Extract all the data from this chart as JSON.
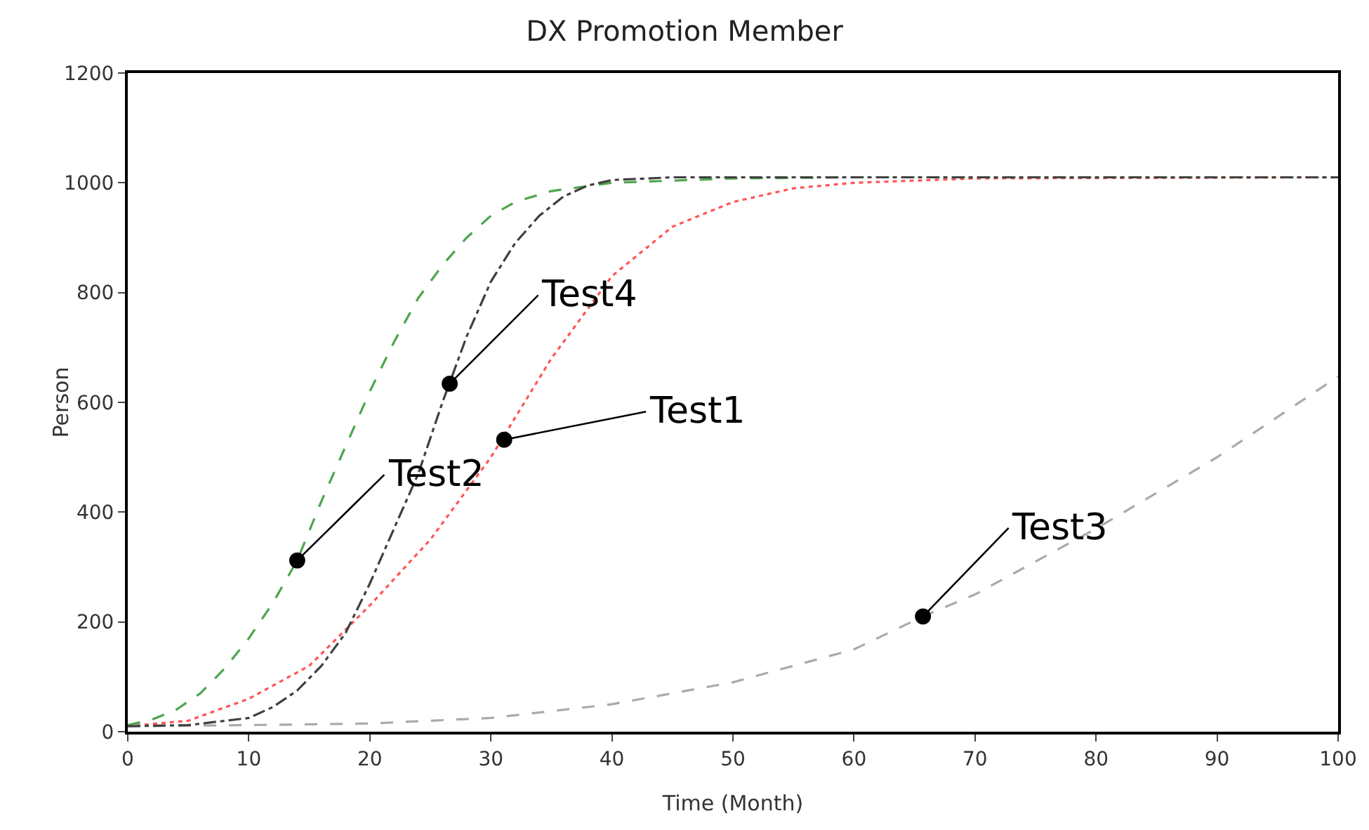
{
  "chart_data": {
    "type": "line",
    "title": "DX Promotion Member",
    "xlabel": "Time (Month)",
    "ylabel": "Person",
    "xlim": [
      0,
      100
    ],
    "xticks": [
      0,
      10,
      20,
      30,
      40,
      50,
      60,
      70,
      80,
      90,
      100
    ],
    "ylim": [
      0,
      1200
    ],
    "yticks": [
      0,
      200,
      400,
      600,
      800,
      1000,
      1200
    ],
    "grid": false,
    "marker": "none",
    "series": [
      {
        "color": "#ff5555",
        "line_style": "dotted",
        "x": [
          0,
          5,
          10,
          15,
          20,
          25,
          30,
          35,
          40,
          45,
          50,
          55,
          60,
          70,
          100
        ],
        "values": [
          10,
          20,
          60,
          120,
          230,
          350,
          500,
          680,
          830,
          920,
          965,
          990,
          1000,
          1008,
          1010
        ]
      },
      {
        "color": "#4ca64c",
        "line_style": "dashed",
        "x": [
          0,
          2,
          4,
          6,
          8,
          10,
          12,
          14,
          16,
          18,
          20,
          22,
          24,
          26,
          28,
          30,
          32,
          35,
          40,
          50,
          60,
          80,
          100
        ],
        "values": [
          12,
          22,
          40,
          70,
          115,
          170,
          235,
          312,
          420,
          520,
          620,
          710,
          790,
          850,
          900,
          940,
          965,
          985,
          1000,
          1008,
          1010,
          1010,
          1010
        ]
      },
      {
        "color": "#aaaaaa",
        "line_style": "dashed",
        "x": [
          0,
          10,
          20,
          30,
          40,
          50,
          60,
          65.7,
          70,
          80,
          90,
          100
        ],
        "values": [
          10,
          12,
          15,
          25,
          50,
          90,
          150,
          210,
          250,
          370,
          500,
          647
        ]
      },
      {
        "color": "#404040",
        "line_style": "dashdot",
        "x": [
          0,
          5,
          10,
          12,
          14,
          16,
          18,
          20,
          22,
          24,
          26,
          28,
          30,
          32,
          34,
          36,
          38,
          40,
          45,
          50,
          100
        ],
        "values": [
          10,
          12,
          25,
          45,
          75,
          120,
          180,
          270,
          370,
          470,
          600,
          720,
          820,
          890,
          940,
          975,
          995,
          1005,
          1010,
          1010,
          1010
        ]
      }
    ],
    "annotations": [
      {
        "text": "Test1",
        "x": 31.1,
        "y": 532
      },
      {
        "text": "Test2",
        "x": 14,
        "y": 312
      },
      {
        "text": "Test3",
        "x": 65.7,
        "y": 210
      },
      {
        "text": "Test4",
        "x": 26.6,
        "y": 634
      }
    ]
  }
}
